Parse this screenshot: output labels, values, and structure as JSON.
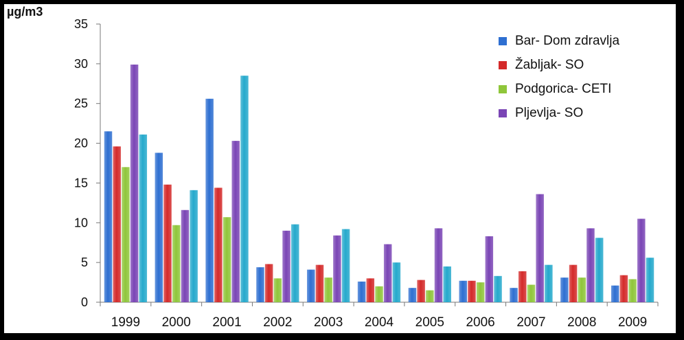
{
  "chart_data": {
    "type": "bar",
    "title_fragment": "",
    "ylabel": "µg/m3",
    "xlabel": "",
    "ylim": [
      0,
      35
    ],
    "yticks": [
      0,
      5,
      10,
      15,
      20,
      25,
      30,
      35
    ],
    "grid": false,
    "legend_position": "top-right",
    "categories": [
      "1999",
      "2000",
      "2001",
      "2002",
      "2003",
      "2004",
      "2005",
      "2006",
      "2007",
      "2008",
      "2009"
    ],
    "series": [
      {
        "name": "Bar- Dom zdravlja",
        "color": "#2e6fd1",
        "values": [
          21.5,
          18.8,
          25.6,
          4.4,
          4.1,
          2.6,
          1.8,
          2.7,
          1.8,
          3.1,
          2.1
        ]
      },
      {
        "name": "Žabljak- SO",
        "color": "#d42a2a",
        "values": [
          19.6,
          14.8,
          14.4,
          4.8,
          4.7,
          3.0,
          2.8,
          2.7,
          3.9,
          4.7,
          3.4
        ]
      },
      {
        "name": "Podgorica- CETI",
        "color": "#8fc63a",
        "values": [
          17.0,
          9.7,
          10.7,
          3.0,
          3.1,
          2.0,
          1.5,
          2.5,
          2.2,
          3.1,
          2.9
        ]
      },
      {
        "name": "Pljevlja- SO",
        "color": "#7a45b5",
        "values": [
          29.9,
          11.6,
          20.3,
          9.0,
          8.4,
          7.3,
          9.3,
          8.3,
          13.6,
          9.3,
          10.5
        ]
      },
      {
        "name": "",
        "color": "#25a9cc",
        "values": [
          21.1,
          14.1,
          28.5,
          9.8,
          9.2,
          5.0,
          4.5,
          3.3,
          4.7,
          8.1,
          5.6
        ]
      }
    ]
  }
}
